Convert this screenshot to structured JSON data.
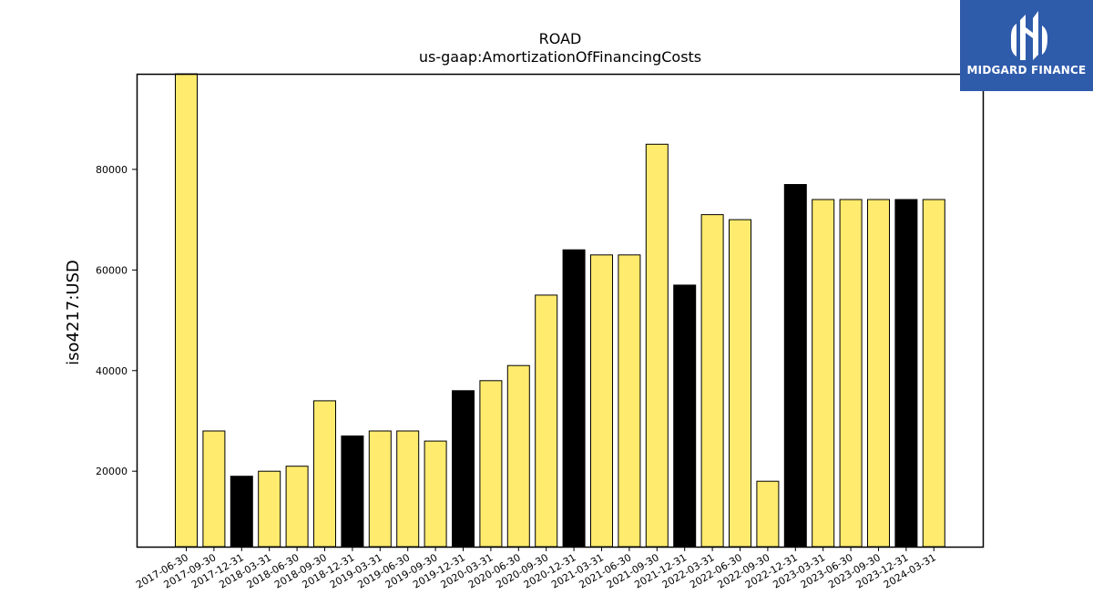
{
  "chart_data": {
    "type": "bar",
    "title": "ROAD",
    "subtitle": "us-gaap:AmortizationOfFinancingCosts",
    "ylabel": "iso4217:USD",
    "xlabel": "",
    "ylim": [
      5000,
      99000
    ],
    "yticks": [
      20000,
      40000,
      60000,
      80000
    ],
    "grid": false,
    "categories": [
      "2017-06-30",
      "2017-09-30",
      "2017-12-31",
      "2018-03-31",
      "2018-06-30",
      "2018-09-30",
      "2018-12-31",
      "2019-03-31",
      "2019-06-30",
      "2019-09-30",
      "2019-12-31",
      "2020-03-31",
      "2020-06-30",
      "2020-09-30",
      "2020-12-31",
      "2021-03-31",
      "2021-06-30",
      "2021-09-30",
      "2021-12-31",
      "2022-03-31",
      "2022-06-30",
      "2022-09-30",
      "2022-12-31",
      "2023-03-31",
      "2023-06-30",
      "2023-09-30",
      "2023-12-31",
      "2024-03-31"
    ],
    "values": [
      99000,
      28000,
      19000,
      20000,
      21000,
      34000,
      27000,
      28000,
      28000,
      26000,
      36000,
      38000,
      41000,
      55000,
      64000,
      63000,
      63000,
      85000,
      57000,
      71000,
      70000,
      18000,
      77000,
      74000,
      74000,
      74000,
      74000,
      74000
    ],
    "colors": {
      "quarter": "#ffeb6e",
      "year_end": "#000000",
      "edge": "#000000"
    }
  },
  "logo": {
    "text": "MIDGARD FINANCE",
    "background": "#2f5bab"
  }
}
